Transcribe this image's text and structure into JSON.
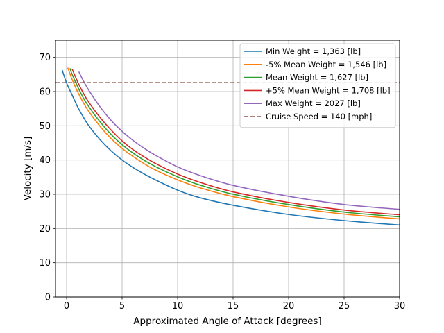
{
  "chart_data": {
    "type": "line",
    "xlabel": "Approximated Angle of Attack [degrees]",
    "ylabel": "Velocity [m/s]",
    "xlim": [
      -1,
      30
    ],
    "ylim": [
      0,
      75
    ],
    "xticks": [
      0,
      5,
      10,
      15,
      20,
      25,
      30
    ],
    "yticks": [
      0,
      10,
      20,
      30,
      40,
      50,
      60,
      70
    ],
    "grid": true,
    "legend_position": "top-right",
    "series": [
      {
        "name": "Min Weight = 1,363 [lb]",
        "color": "#1f77b4",
        "style": "solid",
        "x": [
          -0.4,
          0,
          0.5,
          1,
          1.5,
          2,
          3,
          4,
          5,
          6,
          7,
          8,
          10,
          12,
          15,
          20,
          25,
          30
        ],
        "y": [
          66.3,
          62.5,
          59.0,
          55.5,
          52.6,
          50.0,
          46.0,
          42.7,
          40.0,
          37.8,
          35.9,
          34.2,
          31.2,
          29.0,
          26.8,
          24.1,
          22.3,
          21.0
        ]
      },
      {
        "name": "-5% Mean Weight = 1,546 [lb]",
        "color": "#ff7f0e",
        "style": "solid",
        "x": [
          0.1,
          0.5,
          1,
          1.5,
          2,
          3,
          4,
          5,
          6,
          7,
          8,
          10,
          12,
          15,
          20,
          25,
          30
        ],
        "y": [
          67.0,
          63.5,
          59.9,
          56.8,
          54.2,
          49.9,
          46.3,
          43.4,
          41.0,
          38.9,
          37.1,
          34.2,
          31.9,
          29.3,
          26.3,
          24.2,
          22.8
        ]
      },
      {
        "name": "Mean Weight = 1,627 [lb]",
        "color": "#2ca02c",
        "style": "solid",
        "x": [
          0.3,
          0.5,
          1,
          1.5,
          2,
          3,
          4,
          5,
          6,
          7,
          8,
          10,
          12,
          15,
          20,
          25,
          30
        ],
        "y": [
          66.8,
          65.0,
          61.4,
          58.2,
          55.6,
          51.2,
          47.5,
          44.5,
          42.0,
          39.9,
          38.1,
          35.1,
          32.7,
          30.0,
          27.0,
          24.8,
          23.4
        ]
      },
      {
        "name": "+5% Mean Weight = 1,708 [lb]",
        "color": "#d62728",
        "style": "solid",
        "x": [
          0.5,
          1,
          1.5,
          2,
          3,
          4,
          5,
          6,
          7,
          8,
          10,
          12,
          15,
          20,
          25,
          30
        ],
        "y": [
          66.6,
          62.8,
          59.6,
          56.9,
          52.5,
          48.8,
          45.6,
          43.0,
          40.9,
          39.0,
          35.9,
          33.5,
          30.7,
          27.6,
          25.4,
          24.0
        ]
      },
      {
        "name": "Max Weight = 2027 [lb]",
        "color": "#9467bd",
        "style": "solid",
        "x": [
          1.1,
          1.5,
          2,
          3,
          4,
          5,
          6,
          7,
          8,
          10,
          12,
          15,
          20,
          25,
          30
        ],
        "y": [
          65.8,
          63.2,
          60.4,
          55.6,
          51.6,
          48.4,
          45.7,
          43.4,
          41.4,
          38.0,
          35.5,
          32.6,
          29.4,
          27.0,
          25.6
        ]
      },
      {
        "name": "Cruise Speed = 140 [mph]",
        "color": "#8c564b",
        "style": "dashed",
        "x": [
          -1,
          30
        ],
        "y": [
          62.6,
          62.6
        ]
      }
    ]
  }
}
